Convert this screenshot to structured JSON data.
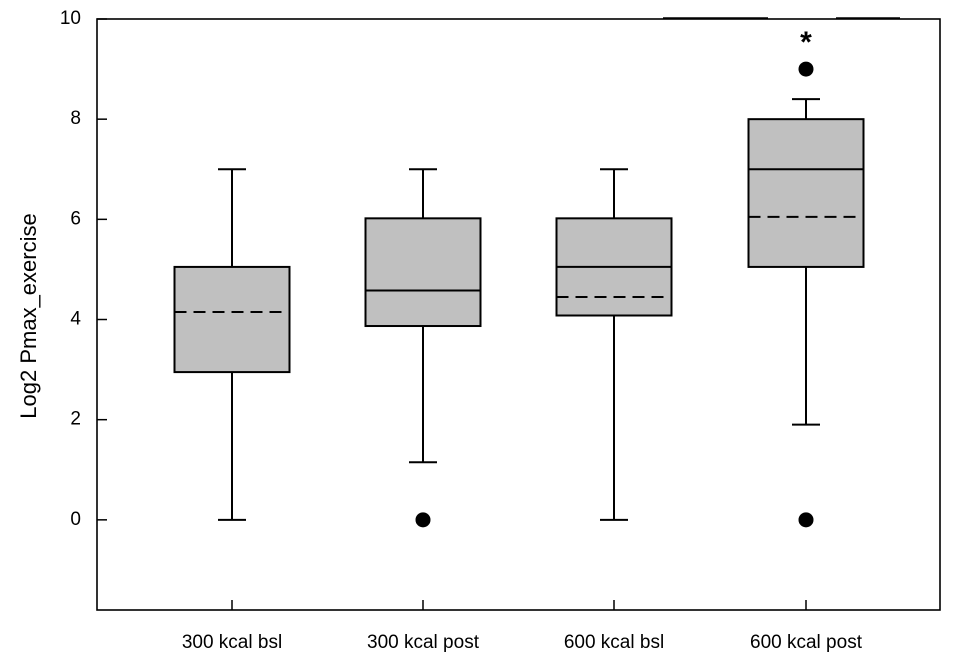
{
  "chart_data": {
    "type": "boxplot",
    "ylabel": "Log2 Pmax_exercise",
    "ylim": [
      -1.8,
      10
    ],
    "yticks": [
      0,
      2,
      4,
      6,
      8,
      10
    ],
    "categories": [
      "300 kcal bsl",
      "300 kcal post",
      "600 kcal bsl",
      "600 kcal post"
    ],
    "boxes": [
      {
        "whisker_low": 0,
        "q1": 2.95,
        "median": null,
        "mean": 4.15,
        "q3": 5.05,
        "whisker_high": 7,
        "outliers": []
      },
      {
        "whisker_low": 1.15,
        "q1": 3.87,
        "median": 4.58,
        "mean": null,
        "q3": 6.02,
        "whisker_high": 7,
        "outliers": [
          0
        ]
      },
      {
        "whisker_low": 0,
        "q1": 4.08,
        "median": 5.05,
        "mean": 4.45,
        "q3": 6.02,
        "whisker_high": 7,
        "outliers": []
      },
      {
        "whisker_low": 1.9,
        "q1": 5.05,
        "median": 7.0,
        "mean": 6.05,
        "q3": 8.0,
        "whisker_high": 8.4,
        "outliers": [
          0,
          9
        ]
      }
    ],
    "box_fill": "#c0c0c0",
    "significance": {
      "symbol": "*",
      "category": "600 kcal post"
    }
  }
}
